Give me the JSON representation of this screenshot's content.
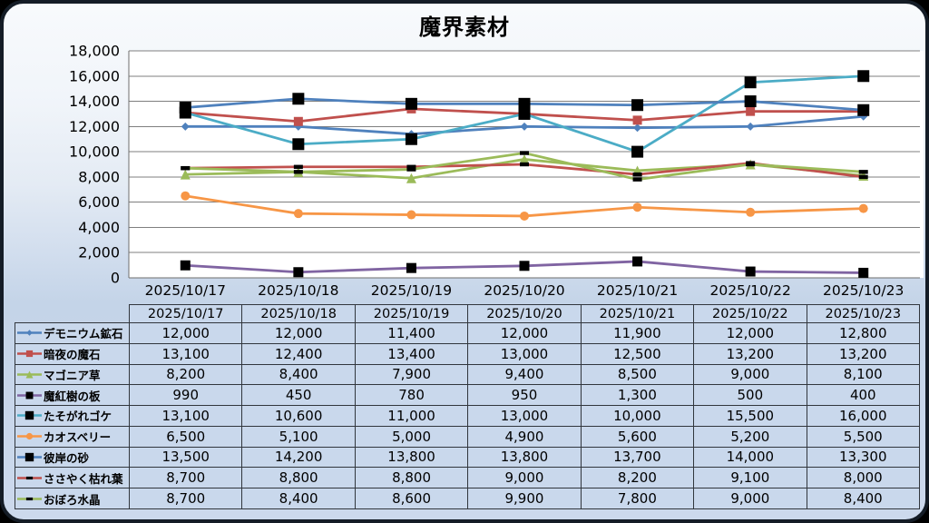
{
  "title": "魔界素材",
  "colors": {
    "card_border": "#141c26",
    "plot_background": "#FFFFFF",
    "gridline": "#7F7F7F",
    "axis": "#6E6E6E",
    "table_cell_background": "#c9d8ec",
    "table_border": "#31363d",
    "text": "#000000"
  },
  "chart_data": {
    "type": "line",
    "title": "魔界素材",
    "categories": [
      "2025/10/17",
      "2025/10/18",
      "2025/10/19",
      "2025/10/20",
      "2025/10/21",
      "2025/10/22",
      "2025/10/23"
    ],
    "series": [
      {
        "name": "デモニウム鉱石",
        "color": "#4F81BD",
        "marker": {
          "shape": "diamond",
          "color": "#4F81BD",
          "size": 9
        },
        "values": [
          12000,
          12000,
          11400,
          12000,
          11900,
          12000,
          12800
        ]
      },
      {
        "name": "暗夜の魔石",
        "color": "#C0504D",
        "marker": {
          "shape": "square",
          "color": "#C0504D",
          "size": 10
        },
        "values": [
          13100,
          12400,
          13400,
          13000,
          12500,
          13200,
          13200
        ]
      },
      {
        "name": "マゴニア草",
        "color": "#9BBB59",
        "marker": {
          "shape": "triangle",
          "color": "#9BBB59",
          "size": 11
        },
        "values": [
          8200,
          8400,
          7900,
          9400,
          8500,
          9000,
          8100
        ]
      },
      {
        "name": "魔紅樹の板",
        "color": "#8064A2",
        "marker": {
          "shape": "square",
          "color": "#000000",
          "size": 11
        },
        "values": [
          990,
          450,
          780,
          950,
          1300,
          500,
          400
        ]
      },
      {
        "name": "たそがれゴケ",
        "color": "#4BACC6",
        "marker": {
          "shape": "square",
          "color": "#000000",
          "size": 13
        },
        "values": [
          13100,
          10600,
          11000,
          13000,
          10000,
          15500,
          16000
        ]
      },
      {
        "name": "カオスベリー",
        "color": "#F79646",
        "marker": {
          "shape": "circle",
          "color": "#F79646",
          "size": 10
        },
        "values": [
          6500,
          5100,
          5000,
          4900,
          5600,
          5200,
          5500
        ]
      },
      {
        "name": "彼岸の砂",
        "color": "#4F81BD",
        "marker": {
          "shape": "square",
          "color": "#000000",
          "size": 13
        },
        "values": [
          13500,
          14200,
          13800,
          13800,
          13700,
          14000,
          13300
        ]
      },
      {
        "name": "ささやく枯れ葉",
        "color": "#C0504D",
        "marker": {
          "shape": "dash",
          "color": "#000000",
          "size": 10
        },
        "values": [
          8700,
          8800,
          8800,
          9000,
          8200,
          9100,
          8000
        ]
      },
      {
        "name": "おぼろ水晶",
        "color": "#9BBB59",
        "marker": {
          "shape": "dash",
          "color": "#000000",
          "size": 10
        },
        "values": [
          8700,
          8400,
          8600,
          9900,
          7800,
          9000,
          8400
        ]
      }
    ],
    "ylim": [
      0,
      18000
    ],
    "ytick_step": 2000,
    "ytick_labels": [
      "0",
      "2,000",
      "4,000",
      "6,000",
      "8,000",
      "10,000",
      "12,000",
      "14,000",
      "16,000",
      "18,000"
    ],
    "grid": true,
    "legend_position": "table-left-column"
  }
}
